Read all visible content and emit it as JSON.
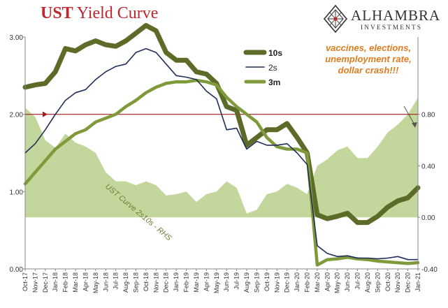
{
  "header": {
    "title_bold": "UST",
    "title_rest": "Yield Curve"
  },
  "logo": {
    "brand": "ALHAMBRA",
    "sub": "INVESTMENTS",
    "icon": "diamond-lattice-icon"
  },
  "annotation": "vaccines, elections, unemployment rate, dollar crash!!!",
  "chart_data": {
    "type": "line",
    "title": "UST Yield Curve",
    "x_labels": [
      "Oct-17",
      "Dec-17",
      "Feb-18",
      "Apr-18",
      "Jun-18",
      "Aug-18",
      "Oct-18",
      "Dec-18",
      "Feb-19",
      "Apr-19",
      "Jun-19",
      "Aug-19",
      "Oct-19",
      "Dec-19",
      "Feb-20",
      "Apr-20",
      "Jun-20",
      "Aug-20",
      "Oct-20",
      "Dec-20"
    ],
    "x_labels_odd": [
      "Nov-17",
      "Jan-18",
      "Mar-18",
      "May-18",
      "Jul-18",
      "Sep-18",
      "Nov-18",
      "Jan-19",
      "Mar-19",
      "May-19",
      "Jul-19",
      "Sep-19",
      "Nov-19",
      "Jan-20",
      "Mar-20",
      "May-20",
      "Jul-20",
      "Sep-20",
      "Nov-20",
      "Jan-21"
    ],
    "left_axis": {
      "ylim": [
        0,
        3
      ],
      "ticks": [
        "0.00",
        "1.00",
        "2.00",
        "3.00"
      ]
    },
    "right_axis": {
      "ylim": [
        -0.4,
        1.4
      ],
      "ticks": [
        "-0.40",
        "0.00",
        "0.40",
        "0.80"
      ]
    },
    "reference_line": {
      "value": 0.8,
      "axis": "right",
      "color": "#a31a1a"
    },
    "area_label": "UST Curve 2s10s - RHS",
    "colors": {
      "tens": "#5d6b28",
      "twos": "#1f2d5a",
      "threem": "#7e9a3a",
      "area": "#c3d69b",
      "ref": "#a31a1a"
    },
    "legend": {
      "placement": "top-right",
      "entries": [
        "10s",
        "2s",
        "3m"
      ]
    },
    "months": [
      "Oct-17",
      "Nov-17",
      "Dec-17",
      "Jan-18",
      "Feb-18",
      "Mar-18",
      "Apr-18",
      "May-18",
      "Jun-18",
      "Jul-18",
      "Aug-18",
      "Sep-18",
      "Oct-18",
      "Nov-18",
      "Dec-18",
      "Jan-19",
      "Feb-19",
      "Mar-19",
      "Apr-19",
      "May-19",
      "Jun-19",
      "Jul-19",
      "Aug-19",
      "Sep-19",
      "Oct-19",
      "Nov-19",
      "Dec-19",
      "Jan-20",
      "Feb-20",
      "Mar-20",
      "Apr-20",
      "May-20",
      "Jun-20",
      "Jul-20",
      "Aug-20",
      "Sep-20",
      "Oct-20",
      "Nov-20",
      "Dec-20",
      "Jan-21"
    ],
    "series": [
      {
        "name": "10s",
        "axis": "left",
        "values": [
          2.35,
          2.38,
          2.4,
          2.55,
          2.85,
          2.82,
          2.9,
          2.95,
          2.9,
          2.88,
          2.95,
          3.05,
          3.15,
          3.08,
          2.8,
          2.7,
          2.7,
          2.55,
          2.52,
          2.4,
          2.1,
          2.05,
          1.6,
          1.7,
          1.8,
          1.8,
          1.88,
          1.7,
          1.5,
          0.7,
          0.65,
          0.68,
          0.72,
          0.6,
          0.6,
          0.68,
          0.8,
          0.88,
          0.92,
          1.05
        ]
      },
      {
        "name": "2s",
        "axis": "left",
        "values": [
          1.5,
          1.62,
          1.8,
          2.0,
          2.18,
          2.28,
          2.32,
          2.45,
          2.55,
          2.62,
          2.65,
          2.8,
          2.85,
          2.8,
          2.65,
          2.5,
          2.48,
          2.45,
          2.3,
          2.2,
          1.8,
          1.82,
          1.55,
          1.65,
          1.6,
          1.6,
          1.62,
          1.5,
          1.35,
          0.3,
          0.2,
          0.16,
          0.17,
          0.14,
          0.14,
          0.13,
          0.14,
          0.16,
          0.12,
          0.12
        ]
      },
      {
        "name": "3m",
        "axis": "left",
        "values": [
          1.1,
          1.25,
          1.4,
          1.55,
          1.65,
          1.75,
          1.8,
          1.9,
          1.95,
          2.0,
          2.1,
          2.18,
          2.28,
          2.35,
          2.4,
          2.42,
          2.42,
          2.44,
          2.42,
          2.38,
          2.22,
          2.1,
          2.0,
          1.9,
          1.7,
          1.58,
          1.55,
          1.55,
          1.5,
          0.05,
          0.12,
          0.13,
          0.15,
          0.13,
          0.12,
          0.1,
          0.09,
          0.08,
          0.07,
          0.08
        ]
      },
      {
        "name": "UST Curve 2s10s - RHS",
        "axis": "right",
        "type": "area",
        "values": [
          0.85,
          0.78,
          0.6,
          0.54,
          0.65,
          0.58,
          0.55,
          0.5,
          0.35,
          0.28,
          0.28,
          0.25,
          0.28,
          0.25,
          0.17,
          0.18,
          0.2,
          0.12,
          0.18,
          0.2,
          0.28,
          0.23,
          0.03,
          0.06,
          0.18,
          0.2,
          0.26,
          0.23,
          0.18,
          0.4,
          0.45,
          0.52,
          0.55,
          0.46,
          0.46,
          0.55,
          0.66,
          0.72,
          0.8,
          0.93
        ]
      }
    ]
  }
}
